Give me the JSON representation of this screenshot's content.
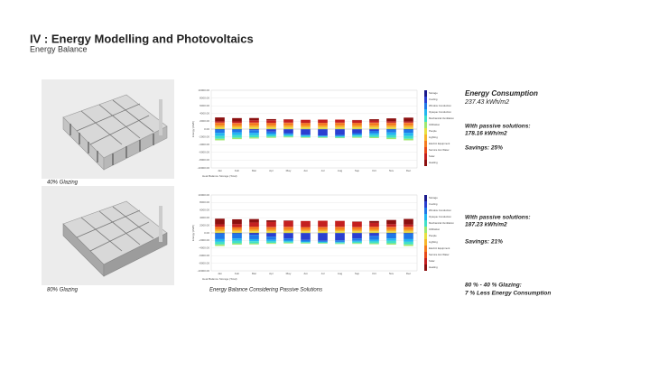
{
  "header": {
    "title": "IV :  Energy Modelling and Photovoltaics",
    "subtitle": "Energy Balance"
  },
  "figures": {
    "captions": [
      "40% Glazing",
      "80% Glazing"
    ],
    "chart_caption": "Energy Balance Considering Passive Solutions"
  },
  "notes": {
    "block1": [
      "Energy Consumption",
      "237.43 kWh/m2",
      "With passive solutions:",
      "178.16 kWh/m2",
      "Savings: 25%"
    ],
    "block2": [
      "With passive solutions:",
      "187.23 kWh/m2",
      "Savings: 21%"
    ],
    "block3": [
      "80 % - 40 % Glazing:",
      "7 % Less Energy Consumption"
    ]
  },
  "chart_data": [
    {
      "type": "bar",
      "stacked": true,
      "y_label": "Energy (kWh)",
      "x_label": "Heat Balance Storage (Total)",
      "grid": true,
      "categories": [
        "Jan",
        "Feb",
        "Mar",
        "Apr",
        "May",
        "Jun",
        "Jul",
        "Aug",
        "Sep",
        "Oct",
        "Nov",
        "Dec"
      ],
      "ylim": [
        -10000,
        10000
      ],
      "yticks": [
        {
          "value": 10000,
          "label": "10000.00"
        },
        {
          "value": 8000,
          "label": "8000.00"
        },
        {
          "value": 6000,
          "label": "6000.00"
        },
        {
          "value": 4000,
          "label": "4000.00"
        },
        {
          "value": 2000,
          "label": "2000.00"
        },
        {
          "value": 0,
          "label": "0.00"
        },
        {
          "value": -2000,
          "label": "-2000.00"
        },
        {
          "value": -4000,
          "label": "-4000.00"
        },
        {
          "value": -6000,
          "label": "-6000.00"
        },
        {
          "value": -8000,
          "label": "-8000.00"
        },
        {
          "value": -10000,
          "label": "-10000.00"
        }
      ],
      "series": [
        {
          "name": "Storage",
          "color": "#1a1a8c",
          "values": [
            -100,
            -90,
            -80,
            -60,
            -50,
            -40,
            -40,
            -40,
            -50,
            -70,
            -90,
            -100
          ]
        },
        {
          "name": "Cooling",
          "color": "#2a3fd0",
          "values": [
            0,
            0,
            -200,
            -600,
            -1000,
            -1400,
            -1600,
            -1500,
            -1000,
            -400,
            0,
            0
          ]
        },
        {
          "name": "Window Conduction",
          "color": "#1f78e8",
          "values": [
            -900,
            -800,
            -700,
            -500,
            -300,
            -200,
            -150,
            -200,
            -350,
            -600,
            -800,
            -900
          ]
        },
        {
          "name": "Opaque Conduction",
          "color": "#22b6f0",
          "values": [
            -800,
            -700,
            -600,
            -450,
            -300,
            -200,
            -150,
            -200,
            -300,
            -500,
            -700,
            -800
          ]
        },
        {
          "name": "Mechanical Ventilation",
          "color": "#3fe0c8",
          "values": [
            -700,
            -650,
            -550,
            -400,
            -300,
            -250,
            -200,
            -250,
            -350,
            -500,
            -650,
            -700
          ]
        },
        {
          "name": "Infiltration",
          "color": "#9ee870",
          "values": [
            -400,
            -350,
            -300,
            -250,
            -200,
            -150,
            -150,
            -150,
            -200,
            -250,
            -350,
            -400
          ]
        },
        {
          "name": "People",
          "color": "#e8e040",
          "values": [
            400,
            380,
            420,
            400,
            420,
            400,
            410,
            420,
            400,
            420,
            400,
            380
          ]
        },
        {
          "name": "Lighting",
          "color": "#f7b52a",
          "values": [
            500,
            450,
            480,
            450,
            460,
            430,
            440,
            460,
            440,
            470,
            470,
            490
          ]
        },
        {
          "name": "Electric Equipment",
          "color": "#f57c1f",
          "values": [
            700,
            650,
            700,
            680,
            700,
            680,
            690,
            700,
            680,
            700,
            690,
            700
          ]
        },
        {
          "name": "Service Hot Water",
          "color": "#e84a1a",
          "values": [
            100,
            100,
            100,
            90,
            90,
            80,
            80,
            80,
            90,
            100,
            100,
            100
          ]
        },
        {
          "name": "Solar",
          "color": "#c42020",
          "values": [
            300,
            400,
            550,
            650,
            750,
            800,
            820,
            780,
            650,
            500,
            350,
            280
          ]
        },
        {
          "name": "Heating",
          "color": "#8c1010",
          "values": [
            1000,
            850,
            600,
            300,
            100,
            0,
            0,
            0,
            80,
            350,
            750,
            1000
          ]
        }
      ]
    },
    {
      "type": "bar",
      "stacked": true,
      "y_label": "Energy (kWh)",
      "x_label": "Heat Balance Storage (Total)",
      "grid": true,
      "categories": [
        "Jan",
        "Feb",
        "Mar",
        "Apr",
        "May",
        "Jun",
        "Jul",
        "Aug",
        "Sep",
        "Oct",
        "Nov",
        "Dec"
      ],
      "ylim": [
        -10000,
        10000
      ],
      "yticks": [
        {
          "value": 10000,
          "label": "10000.00"
        },
        {
          "value": 8000,
          "label": "8000.00"
        },
        {
          "value": 6000,
          "label": "6000.00"
        },
        {
          "value": 4000,
          "label": "4000.00"
        },
        {
          "value": 2000,
          "label": "2000.00"
        },
        {
          "value": 0,
          "label": "0.00"
        },
        {
          "value": -2000,
          "label": "-2000.00"
        },
        {
          "value": -4000,
          "label": "-4000.00"
        },
        {
          "value": -6000,
          "label": "-6000.00"
        },
        {
          "value": -8000,
          "label": "-8000.00"
        },
        {
          "value": -10000,
          "label": "-10000.00"
        }
      ],
      "series": [
        {
          "name": "Storage",
          "color": "#1a1a8c",
          "values": [
            -150,
            -130,
            -110,
            -90,
            -70,
            -60,
            -60,
            -60,
            -80,
            -100,
            -130,
            -150
          ]
        },
        {
          "name": "Cooling",
          "color": "#2a3fd0",
          "values": [
            0,
            0,
            -400,
            -900,
            -1400,
            -1800,
            -2000,
            -1900,
            -1400,
            -700,
            0,
            0
          ]
        },
        {
          "name": "Window Conduction",
          "color": "#1f78e8",
          "values": [
            -1500,
            -1350,
            -1150,
            -850,
            -550,
            -400,
            -300,
            -400,
            -600,
            -1000,
            -1350,
            -1500
          ]
        },
        {
          "name": "Opaque Conduction",
          "color": "#22b6f0",
          "values": [
            -700,
            -620,
            -540,
            -400,
            -270,
            -180,
            -140,
            -180,
            -270,
            -450,
            -620,
            -700
          ]
        },
        {
          "name": "Mechanical Ventilation",
          "color": "#3fe0c8",
          "values": [
            -700,
            -650,
            -550,
            -400,
            -300,
            -250,
            -200,
            -250,
            -350,
            -500,
            -650,
            -700
          ]
        },
        {
          "name": "Infiltration",
          "color": "#9ee870",
          "values": [
            -400,
            -350,
            -300,
            -250,
            -200,
            -150,
            -150,
            -150,
            -200,
            -250,
            -350,
            -400
          ]
        },
        {
          "name": "People",
          "color": "#e8e040",
          "values": [
            400,
            380,
            420,
            400,
            420,
            400,
            410,
            420,
            400,
            420,
            400,
            380
          ]
        },
        {
          "name": "Lighting",
          "color": "#f7b52a",
          "values": [
            450,
            400,
            430,
            400,
            410,
            380,
            390,
            410,
            390,
            420,
            420,
            440
          ]
        },
        {
          "name": "Electric Equipment",
          "color": "#f57c1f",
          "values": [
            700,
            650,
            700,
            680,
            700,
            680,
            690,
            700,
            680,
            700,
            690,
            700
          ]
        },
        {
          "name": "Service Hot Water",
          "color": "#e84a1a",
          "values": [
            100,
            100,
            100,
            90,
            90,
            80,
            80,
            80,
            90,
            100,
            100,
            100
          ]
        },
        {
          "name": "Solar",
          "color": "#c42020",
          "values": [
            600,
            800,
            1100,
            1300,
            1500,
            1600,
            1640,
            1560,
            1300,
            1000,
            700,
            560
          ]
        },
        {
          "name": "Heating",
          "color": "#8c1010",
          "values": [
            1500,
            1250,
            900,
            450,
            150,
            0,
            0,
            0,
            120,
            500,
            1100,
            1500
          ]
        }
      ]
    }
  ]
}
